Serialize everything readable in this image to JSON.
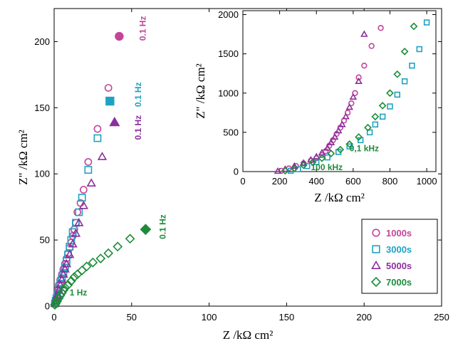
{
  "chart_data": [
    {
      "type": "scatter",
      "title": "",
      "xlabel": "Z /kΩ cm²",
      "ylabel": "Z\" /kΩ cm²",
      "xlim": [
        0,
        250
      ],
      "ylim": [
        0,
        225
      ],
      "xticks": [
        0,
        50,
        100,
        150,
        200,
        250
      ],
      "yticks": [
        0,
        50,
        100,
        150,
        200
      ],
      "grid": false,
      "legend": "bottom-right",
      "series": [
        {
          "name": "1000s",
          "color": "#c2459a",
          "marker": "circle",
          "x": [
            0.5,
            1,
            1.5,
            2,
            2.5,
            3,
            4,
            5,
            6,
            7,
            8,
            9,
            10,
            11,
            12,
            13,
            14,
            15,
            17,
            19,
            22,
            28,
            35
          ],
          "y": [
            2,
            4,
            7,
            10,
            13,
            16,
            20,
            24,
            28,
            32,
            36,
            40,
            44,
            48,
            53,
            58,
            63,
            71,
            78,
            88,
            109,
            134,
            165
          ],
          "low_freq_point": {
            "x": 42,
            "y": 204
          }
        },
        {
          "name": "3000s",
          "color": "#1fa2c2",
          "marker": "square",
          "x": [
            0.5,
            1,
            1.5,
            2,
            3,
            4,
            5,
            6,
            7,
            8,
            9,
            10,
            11,
            12,
            14,
            16,
            18,
            22,
            28
          ],
          "y": [
            2,
            4,
            6,
            9,
            13,
            17,
            21,
            25,
            29,
            34,
            39,
            45,
            50,
            56,
            63,
            71,
            82,
            103,
            127
          ],
          "low_freq_point": {
            "x": 36,
            "y": 155
          }
        },
        {
          "name": "5000s",
          "color": "#8c2f9e",
          "marker": "triangle",
          "x": [
            0.5,
            1,
            1.5,
            2,
            3,
            4,
            5,
            6,
            7,
            8,
            10,
            12,
            14,
            16,
            19,
            24,
            31
          ],
          "y": [
            2,
            4,
            6,
            8,
            12,
            16,
            20,
            24,
            28,
            32,
            39,
            47,
            55,
            63,
            76,
            93,
            113
          ],
          "low_freq_point": {
            "x": 39,
            "y": 139
          }
        },
        {
          "name": "7000s",
          "color": "#1c8c3a",
          "marker": "diamond",
          "x": [
            0.5,
            1,
            1.5,
            2,
            3,
            4,
            5,
            6,
            7,
            9,
            11,
            13,
            15,
            18,
            21,
            25,
            30,
            35,
            41,
            49
          ],
          "y": [
            1,
            2,
            3,
            4,
            6,
            8,
            10,
            12,
            14,
            16,
            19,
            22,
            24,
            27,
            30,
            33,
            36,
            40,
            45,
            51
          ],
          "low_freq_point": {
            "x": 59,
            "y": 58
          }
        }
      ],
      "annotations": [
        {
          "text": "0.1 Hz",
          "x": 59,
          "y": 210,
          "color": "#c2459a",
          "rotation": -90
        },
        {
          "text": "0.1 Hz",
          "x": 56,
          "y": 160,
          "color": "#1fa2c2",
          "rotation": -90
        },
        {
          "text": "0.1 Hz",
          "x": 56,
          "y": 135,
          "color": "#8c2f9e",
          "rotation": -90
        },
        {
          "text": "0.1 Hz",
          "x": 72,
          "y": 60,
          "color": "#1c8c3a",
          "rotation": -90
        },
        {
          "text": "1 Hz",
          "x": 10,
          "y": 8,
          "color": "#1c8c3a",
          "rotation": 0
        }
      ]
    },
    {
      "type": "scatter",
      "title": "",
      "xlabel": "Z /kΩ cm²",
      "ylabel": "Z\" /kΩ cm²",
      "xlim": [
        0,
        1050
      ],
      "ylim": [
        0,
        2050
      ],
      "xticks": [
        0,
        200,
        400,
        600,
        800,
        1000
      ],
      "yticks": [
        0,
        500,
        1000,
        1500,
        2000
      ],
      "grid": false,
      "series": [
        {
          "name": "1000s",
          "color": "#c2459a",
          "marker": "circle",
          "x": [
            210,
            250,
            290,
            330,
            370,
            400,
            430,
            450,
            470,
            490,
            510,
            530,
            550,
            570,
            590,
            610,
            630,
            660,
            700,
            750
          ],
          "y": [
            10,
            40,
            70,
            105,
            140,
            170,
            210,
            260,
            330,
            400,
            480,
            560,
            650,
            750,
            870,
            1000,
            1200,
            1350,
            1600,
            1830
          ]
        },
        {
          "name": "3000s",
          "color": "#1fa2c2",
          "marker": "square",
          "x": [
            260,
            300,
            350,
            400,
            460,
            520,
            580,
            640,
            690,
            720,
            760,
            800,
            840,
            880,
            920,
            960,
            1000
          ],
          "y": [
            10,
            30,
            70,
            120,
            180,
            250,
            320,
            400,
            500,
            600,
            700,
            830,
            980,
            1150,
            1350,
            1560,
            1900
          ]
        },
        {
          "name": "5000s",
          "color": "#8c2f9e",
          "marker": "triangle",
          "x": [
            190,
            230,
            280,
            330,
            370,
            400,
            430,
            460,
            480,
            500,
            520,
            540,
            560,
            580,
            600,
            630,
            660
          ],
          "y": [
            5,
            30,
            70,
            110,
            150,
            190,
            240,
            300,
            370,
            440,
            520,
            600,
            700,
            820,
            950,
            1150,
            1750
          ]
        },
        {
          "name": "7000s",
          "color": "#1c8c3a",
          "marker": "diamond",
          "x": [
            230,
            280,
            330,
            380,
            430,
            480,
            530,
            580,
            630,
            680,
            720,
            760,
            800,
            840,
            880,
            930
          ],
          "y": [
            10,
            40,
            80,
            120,
            170,
            230,
            280,
            350,
            440,
            560,
            700,
            840,
            1000,
            1240,
            1530,
            1850
          ]
        }
      ],
      "annotations": [
        {
          "text": "0,1 kHz",
          "x": 580,
          "y": 260,
          "color": "#1c8c3a"
        },
        {
          "text": "100 kHz",
          "x": 370,
          "y": 20,
          "color": "#1c8c3a"
        }
      ]
    }
  ],
  "legend": {
    "items": [
      {
        "label": "1000s",
        "color": "#c2459a",
        "marker": "circle"
      },
      {
        "label": "3000s",
        "color": "#1fa2c2",
        "marker": "square"
      },
      {
        "label": "5000s",
        "color": "#8c2f9e",
        "marker": "triangle"
      },
      {
        "label": "7000s",
        "color": "#1c8c3a",
        "marker": "diamond"
      }
    ]
  }
}
